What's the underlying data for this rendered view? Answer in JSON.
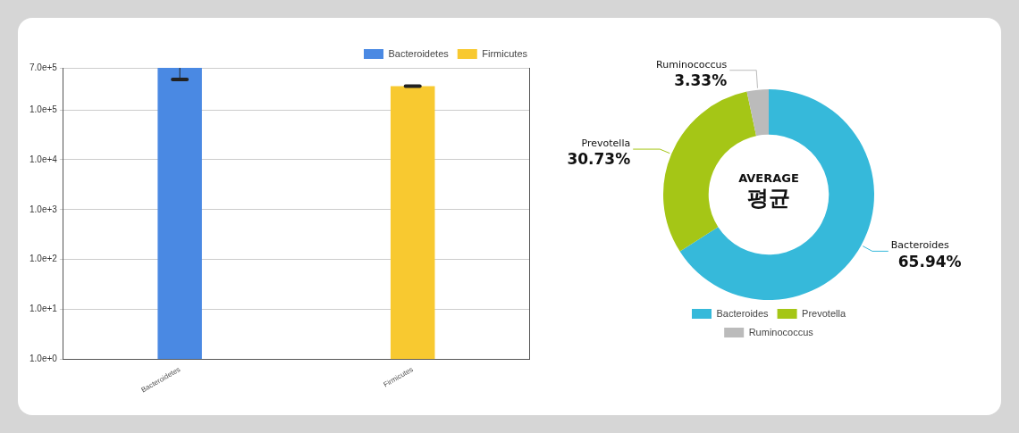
{
  "chart_data": [
    {
      "type": "bar",
      "categories": [
        "Bacteroidetes",
        "Firmicutes"
      ],
      "series": [
        {
          "name": "Bacteroidetes",
          "color": "#4a89e3",
          "values": [
            700000,
            null
          ],
          "errors": [
            [
              410000,
              700000
            ],
            null
          ]
        },
        {
          "name": "Firmicutes",
          "color": "#f8c930",
          "values": [
            null,
            300000
          ],
          "errors": [
            null,
            [
              300000,
              300000
            ]
          ]
        }
      ],
      "log": true,
      "ylim": [
        1,
        700000
      ],
      "yticks": [
        {
          "value": 1,
          "label": "1.0e+0"
        },
        {
          "value": 10,
          "label": "1.0e+1"
        },
        {
          "value": 100,
          "label": "1.0e+2"
        },
        {
          "value": 1000,
          "label": "1.0e+3"
        },
        {
          "value": 10000,
          "label": "1.0e+4"
        },
        {
          "value": 100000,
          "label": "1.0e+5"
        },
        {
          "value": 700000,
          "label": "7.0e+5"
        }
      ],
      "grid": "y",
      "legend": "top right",
      "stacked": true
    },
    {
      "type": "donut",
      "categories": [
        "Bacteroides",
        "Prevotella",
        "Ruminococcus"
      ],
      "values": [
        65.94,
        30.73,
        3.33
      ],
      "colors": [
        "#36b9da",
        "#a5c616",
        "#bbbbbb"
      ],
      "value_labels": [
        "65.94%",
        "30.73%",
        "3.33%"
      ],
      "annotations": [
        "AVERAGE",
        "평균"
      ],
      "legend": "bottom"
    }
  ]
}
